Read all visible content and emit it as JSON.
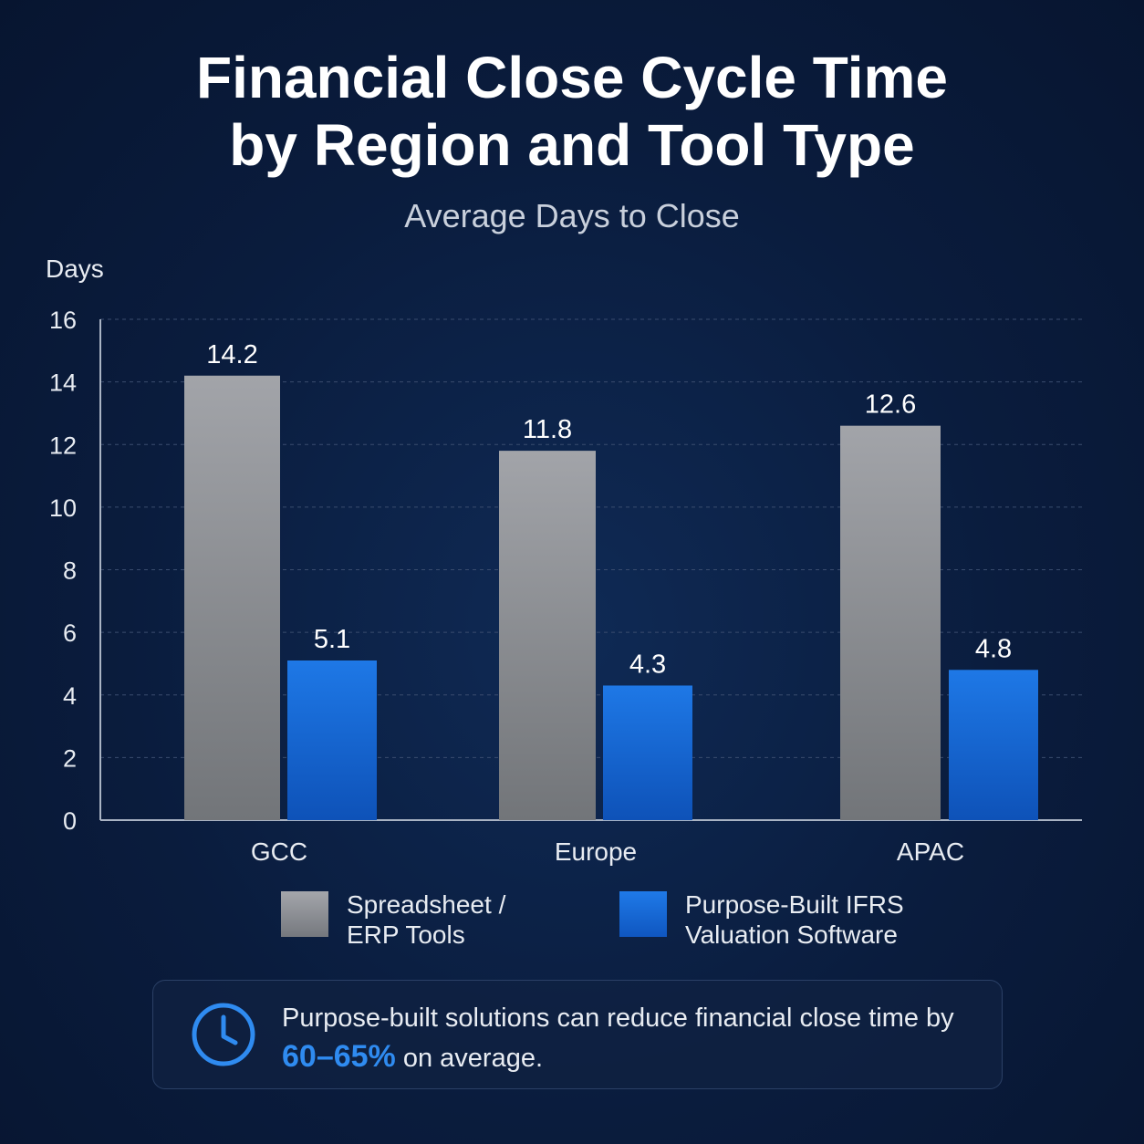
{
  "header": {
    "title_line1": "Financial Close Cycle Time",
    "title_line2": "by Region and Tool Type",
    "subtitle": "Average Days to Close"
  },
  "chart_data": {
    "type": "bar",
    "ylabel": "Days",
    "xlabel": "",
    "ylim": [
      0,
      16
    ],
    "yticks": [
      0,
      2,
      4,
      6,
      8,
      10,
      12,
      14,
      16
    ],
    "categories": [
      "GCC",
      "Europe",
      "APAC"
    ],
    "series": [
      {
        "name": "Spreadsheet / ERP Tools",
        "values": [
          14.2,
          11.8,
          12.6
        ],
        "color": "#8e9096"
      },
      {
        "name": "Purpose-Built IFRS Valuation Software",
        "values": [
          5.1,
          4.3,
          4.8
        ],
        "color": "#1a6ee0"
      }
    ],
    "data_labels": [
      [
        "14.2",
        "11.8",
        "12.6"
      ],
      [
        "5.1",
        "4.3",
        "4.8"
      ]
    ],
    "grid": "horizontal-dashed",
    "legend_position": "bottom"
  },
  "legend": {
    "items": [
      {
        "label": "Spreadsheet /\nERP Tools"
      },
      {
        "label": "Purpose-Built IFRS\nValuation Software"
      }
    ]
  },
  "callout": {
    "icon": "clock-icon",
    "text_before": "Purpose-built solutions can reduce financial close time by ",
    "highlight": "60–65%",
    "text_after": " on average."
  },
  "colors": {
    "highlight": "#2f8bf0",
    "gray_bar": "#8e9096",
    "blue_bar": "#1a6ee0"
  }
}
